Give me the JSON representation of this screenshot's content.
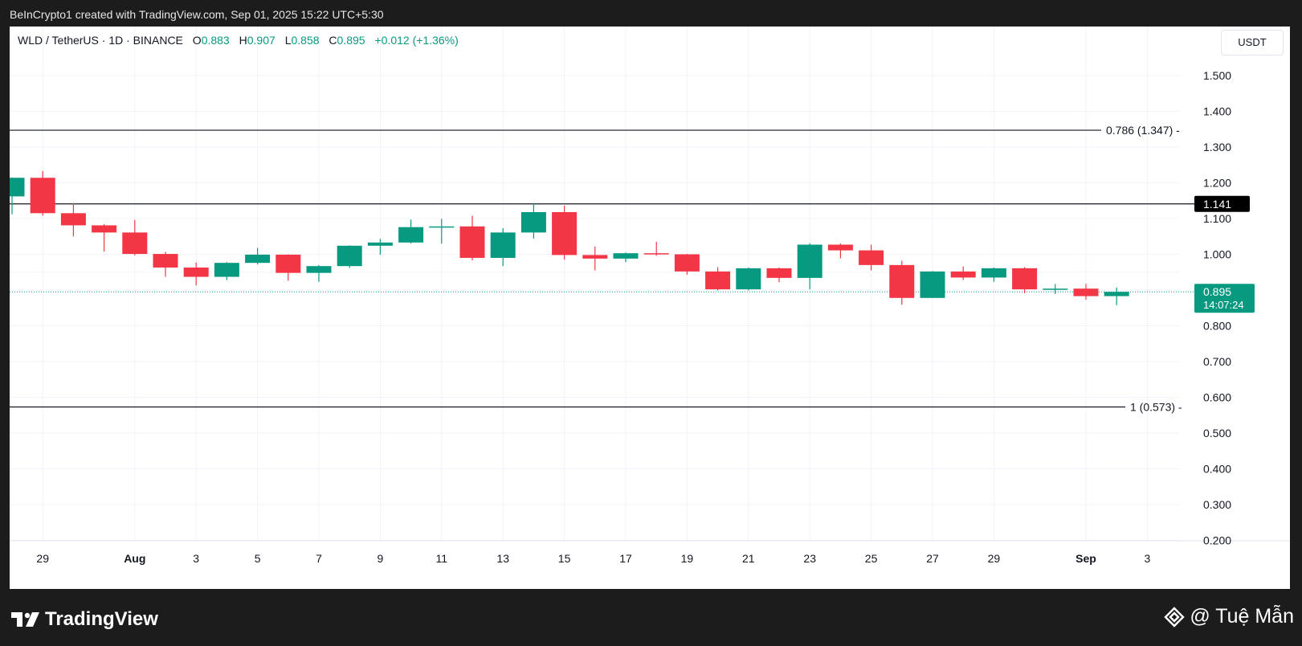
{
  "header": {
    "caption": "BeInCrypto1 created with TradingView.com, Sep 01, 2025 15:22 UTC+5:30"
  },
  "legend": {
    "symbol": "WLD / TetherUS · 1D · BINANCE",
    "open_key": "O",
    "open": "0.883",
    "high_key": "H",
    "high": "0.907",
    "low_key": "L",
    "low": "0.858",
    "close_key": "C",
    "close": "0.895",
    "change": "+0.012 (+1.36%)"
  },
  "unit_button": "USDT",
  "footer": {
    "brand": "TradingView",
    "watermark": "@ Tuệ Mẫn"
  },
  "colors": {
    "up": "#089981",
    "down": "#f23645",
    "grid": "#f0f3fa",
    "text": "#131722"
  },
  "chart_data": {
    "type": "candlestick",
    "symbol": "WLD / TetherUS",
    "interval": "1D",
    "exchange": "BINANCE",
    "ylim": [
      0.15,
      1.6
    ],
    "y_ticks": [
      "1.500",
      "1.400",
      "1.300",
      "1.200",
      "1.100",
      "1.000",
      "0.800",
      "0.700",
      "0.600",
      "0.500",
      "0.400",
      "0.300",
      "0.200"
    ],
    "x_ticks": [
      {
        "i": 1,
        "label": "29"
      },
      {
        "i": 4,
        "label": "Aug"
      },
      {
        "i": 6,
        "label": "3"
      },
      {
        "i": 8,
        "label": "5"
      },
      {
        "i": 10,
        "label": "7"
      },
      {
        "i": 12,
        "label": "9"
      },
      {
        "i": 14,
        "label": "11"
      },
      {
        "i": 16,
        "label": "13"
      },
      {
        "i": 18,
        "label": "15"
      },
      {
        "i": 20,
        "label": "17"
      },
      {
        "i": 22,
        "label": "19"
      },
      {
        "i": 24,
        "label": "21"
      },
      {
        "i": 26,
        "label": "23"
      },
      {
        "i": 28,
        "label": "25"
      },
      {
        "i": 30,
        "label": "27"
      },
      {
        "i": 32,
        "label": "29"
      },
      {
        "i": 35,
        "label": "Sep"
      },
      {
        "i": 37,
        "label": "3"
      }
    ],
    "candles": [
      {
        "o": 1.162,
        "h": 1.215,
        "l": 1.112,
        "c": 1.214
      },
      {
        "o": 1.214,
        "h": 1.233,
        "l": 1.108,
        "c": 1.115
      },
      {
        "o": 1.115,
        "h": 1.143,
        "l": 1.05,
        "c": 1.081
      },
      {
        "o": 1.081,
        "h": 1.084,
        "l": 1.008,
        "c": 1.061
      },
      {
        "o": 1.061,
        "h": 1.096,
        "l": 0.997,
        "c": 1.001
      },
      {
        "o": 1.001,
        "h": 1.007,
        "l": 0.937,
        "c": 0.963
      },
      {
        "o": 0.963,
        "h": 0.977,
        "l": 0.913,
        "c": 0.937
      },
      {
        "o": 0.937,
        "h": 0.978,
        "l": 0.928,
        "c": 0.976
      },
      {
        "o": 0.976,
        "h": 1.018,
        "l": 0.972,
        "c": 0.999
      },
      {
        "o": 0.999,
        "h": 1.0,
        "l": 0.926,
        "c": 0.948
      },
      {
        "o": 0.948,
        "h": 0.97,
        "l": 0.923,
        "c": 0.967
      },
      {
        "o": 0.967,
        "h": 1.025,
        "l": 0.962,
        "c": 1.024
      },
      {
        "o": 1.024,
        "h": 1.043,
        "l": 0.999,
        "c": 1.033
      },
      {
        "o": 1.033,
        "h": 1.097,
        "l": 1.03,
        "c": 1.076
      },
      {
        "o": 1.075,
        "h": 1.099,
        "l": 1.03,
        "c": 1.078
      },
      {
        "o": 1.078,
        "h": 1.108,
        "l": 0.983,
        "c": 0.99
      },
      {
        "o": 0.99,
        "h": 1.073,
        "l": 0.967,
        "c": 1.061
      },
      {
        "o": 1.061,
        "h": 1.143,
        "l": 1.044,
        "c": 1.118
      },
      {
        "o": 1.118,
        "h": 1.136,
        "l": 0.985,
        "c": 0.998
      },
      {
        "o": 0.998,
        "h": 1.022,
        "l": 0.955,
        "c": 0.988
      },
      {
        "o": 0.988,
        "h": 1.005,
        "l": 0.978,
        "c": 1.003
      },
      {
        "o": 1.003,
        "h": 1.035,
        "l": 0.996,
        "c": 1.0
      },
      {
        "o": 1.0,
        "h": 1.001,
        "l": 0.943,
        "c": 0.952
      },
      {
        "o": 0.952,
        "h": 0.964,
        "l": 0.899,
        "c": 0.902
      },
      {
        "o": 0.902,
        "h": 0.963,
        "l": 0.899,
        "c": 0.961
      },
      {
        "o": 0.961,
        "h": 0.963,
        "l": 0.922,
        "c": 0.934
      },
      {
        "o": 0.934,
        "h": 1.031,
        "l": 0.902,
        "c": 1.027
      },
      {
        "o": 1.027,
        "h": 1.03,
        "l": 0.989,
        "c": 1.011
      },
      {
        "o": 1.011,
        "h": 1.027,
        "l": 0.955,
        "c": 0.97
      },
      {
        "o": 0.97,
        "h": 0.982,
        "l": 0.859,
        "c": 0.878
      },
      {
        "o": 0.878,
        "h": 0.953,
        "l": 0.878,
        "c": 0.952
      },
      {
        "o": 0.952,
        "h": 0.966,
        "l": 0.928,
        "c": 0.935
      },
      {
        "o": 0.935,
        "h": 0.963,
        "l": 0.923,
        "c": 0.961
      },
      {
        "o": 0.961,
        "h": 0.964,
        "l": 0.891,
        "c": 0.902
      },
      {
        "o": 0.902,
        "h": 0.917,
        "l": 0.889,
        "c": 0.904
      },
      {
        "o": 0.904,
        "h": 0.917,
        "l": 0.873,
        "c": 0.883
      },
      {
        "o": 0.883,
        "h": 0.907,
        "l": 0.858,
        "c": 0.895
      }
    ],
    "horizontal_lines": [
      {
        "value": 1.347,
        "label": "0.786 (1.347)"
      },
      {
        "value": 1.141,
        "label": "1.141"
      },
      {
        "value": 0.573,
        "label": "1 (0.573)"
      }
    ],
    "last_price": {
      "value": 0.895,
      "label": "0.895",
      "countdown": "14:07:24"
    }
  }
}
